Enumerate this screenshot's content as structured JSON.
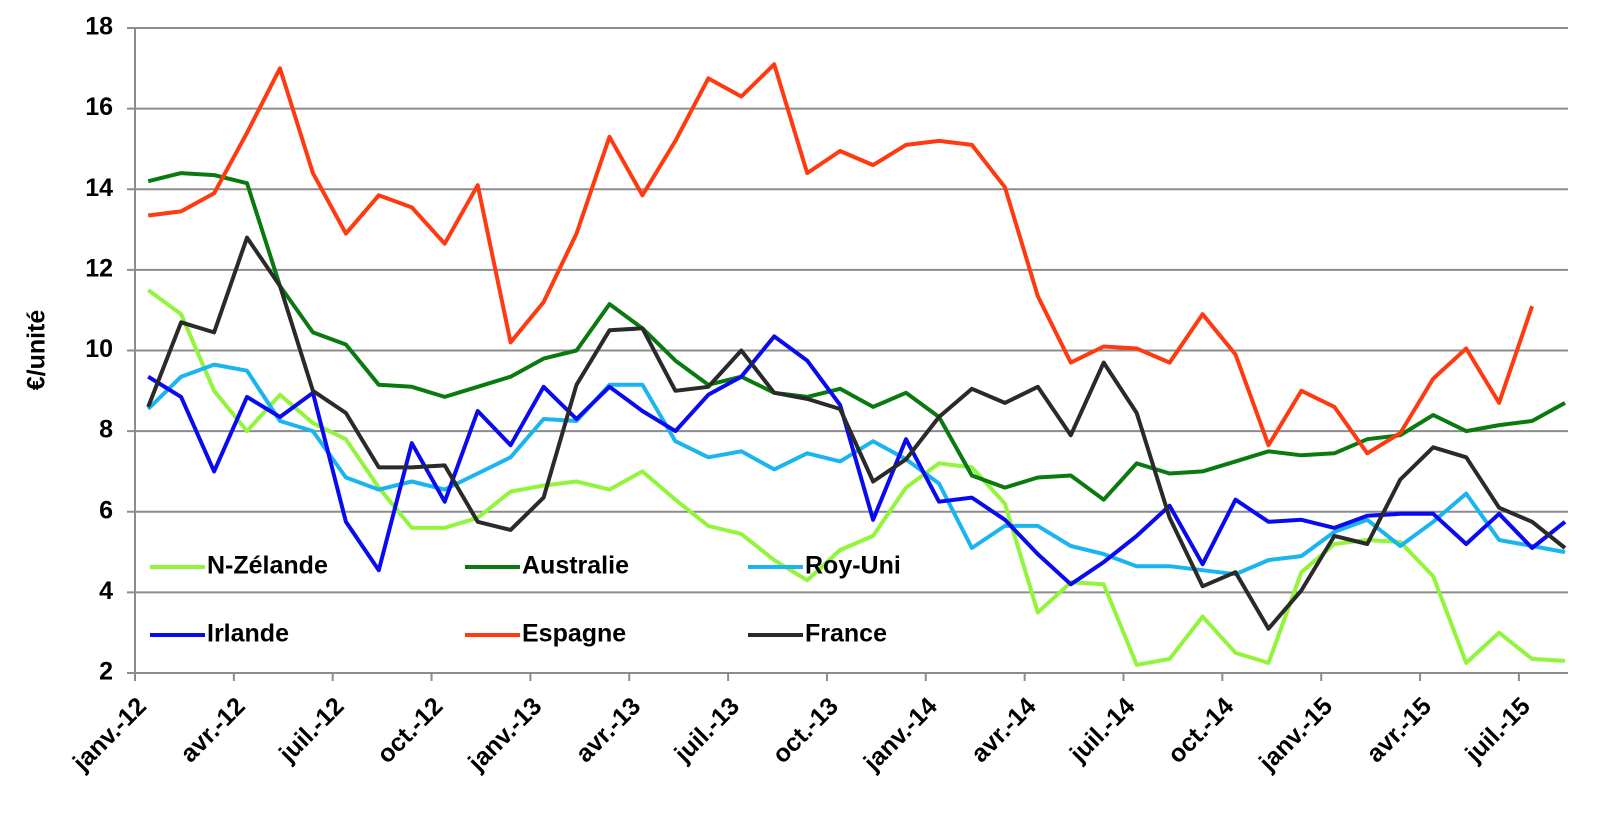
{
  "chart_data": {
    "type": "line",
    "y_label": "€/unité",
    "categories": [
      "janv.-12",
      null,
      null,
      "avr.-12",
      null,
      null,
      "juil.-12",
      null,
      null,
      "oct.-12",
      null,
      null,
      "janv.-13",
      null,
      null,
      "avr.-13",
      null,
      null,
      "juil.-13",
      null,
      null,
      "oct.-13",
      null,
      null,
      "janv.-14",
      null,
      null,
      "avr.-14",
      null,
      null,
      "juil.-14",
      null,
      null,
      "oct.-14",
      null,
      null,
      "janv.-15",
      null,
      null,
      "avr.-15",
      null,
      null,
      "juil.-15",
      null
    ],
    "series": [
      {
        "name": "N-Zélande",
        "color": "#92f53c",
        "values": [
          11.5,
          10.9,
          9.0,
          8.0,
          8.9,
          8.2,
          7.8,
          6.6,
          5.6,
          5.6,
          5.85,
          6.5,
          6.65,
          6.75,
          6.55,
          7.0,
          6.3,
          5.65,
          5.45,
          4.8,
          4.3,
          5.05,
          5.4,
          6.6,
          7.2,
          7.1,
          6.2,
          3.5,
          4.25,
          4.2,
          2.2,
          2.35,
          3.4,
          2.5,
          2.25,
          4.5,
          5.2,
          5.3,
          5.25,
          4.4,
          2.25,
          3.0,
          2.35,
          2.3
        ]
      },
      {
        "name": "Australie",
        "color": "#0a7a10",
        "values": [
          14.2,
          14.4,
          14.35,
          14.15,
          11.6,
          10.45,
          10.15,
          9.15,
          9.1,
          8.85,
          9.1,
          9.35,
          9.8,
          10.0,
          11.15,
          10.55,
          9.75,
          9.15,
          9.35,
          8.95,
          8.85,
          9.05,
          8.6,
          8.95,
          8.35,
          6.9,
          6.6,
          6.85,
          6.9,
          6.3,
          7.2,
          6.95,
          7.0,
          7.25,
          7.5,
          7.4,
          7.45,
          7.8,
          7.9,
          8.4,
          8.0,
          8.15,
          8.25,
          8.7
        ]
      },
      {
        "name": "Roy-Uni",
        "color": "#1ab4ef",
        "values": [
          8.55,
          9.35,
          9.65,
          9.5,
          8.25,
          8.0,
          6.85,
          6.55,
          6.75,
          6.55,
          6.95,
          7.35,
          8.3,
          8.25,
          9.15,
          9.15,
          7.75,
          7.35,
          7.5,
          7.05,
          7.45,
          7.25,
          7.75,
          7.3,
          6.7,
          5.1,
          5.65,
          5.65,
          5.15,
          4.95,
          4.65,
          4.65,
          4.55,
          4.45,
          4.8,
          4.9,
          5.5,
          5.8,
          5.15,
          5.75,
          6.45,
          5.3,
          5.15,
          5.0
        ]
      },
      {
        "name": "Irlande",
        "color": "#0a0af0",
        "values": [
          9.35,
          8.85,
          7.0,
          8.85,
          8.35,
          8.95,
          5.75,
          4.55,
          7.7,
          6.25,
          8.5,
          7.65,
          9.1,
          8.3,
          9.1,
          8.5,
          8.0,
          8.9,
          9.35,
          10.35,
          9.75,
          8.65,
          5.8,
          7.8,
          6.25,
          6.35,
          5.8,
          4.95,
          4.2,
          4.75,
          5.4,
          6.15,
          4.7,
          6.3,
          5.75,
          5.8,
          5.6,
          5.9,
          5.95,
          5.95,
          5.2,
          5.95,
          5.1,
          5.75
        ]
      },
      {
        "name": "Espagne",
        "color": "#ff3a10",
        "values": [
          13.35,
          13.45,
          13.9,
          15.4,
          17.0,
          14.4,
          12.9,
          13.85,
          13.55,
          12.65,
          14.1,
          10.2,
          11.2,
          12.9,
          15.3,
          13.85,
          15.2,
          16.75,
          16.3,
          17.1,
          14.4,
          14.95,
          14.6,
          15.1,
          15.2,
          15.1,
          14.05,
          11.35,
          9.7,
          10.1,
          10.05,
          9.7,
          10.9,
          9.9,
          7.65,
          9.0,
          8.6,
          7.45,
          7.95,
          9.3,
          10.05,
          8.7,
          11.1,
          null
        ]
      },
      {
        "name": "France",
        "color": "#2a2a2a",
        "values": [
          8.6,
          10.7,
          10.45,
          12.8,
          11.6,
          9.0,
          8.45,
          7.1,
          7.1,
          7.15,
          5.75,
          5.55,
          6.35,
          9.15,
          10.5,
          10.55,
          9.0,
          9.1,
          10.0,
          8.95,
          8.8,
          8.55,
          6.75,
          7.3,
          8.35,
          9.05,
          8.7,
          9.1,
          7.9,
          9.7,
          8.45,
          5.85,
          4.15,
          4.5,
          3.1,
          4.05,
          5.4,
          5.2,
          6.8,
          7.6,
          7.35,
          6.1,
          5.75,
          5.1
        ]
      }
    ],
    "ylim": [
      2,
      18
    ],
    "yticks": [
      2,
      4,
      6,
      8,
      10,
      12,
      14,
      16,
      18
    ],
    "grid": true,
    "legend": "bottom-left"
  }
}
